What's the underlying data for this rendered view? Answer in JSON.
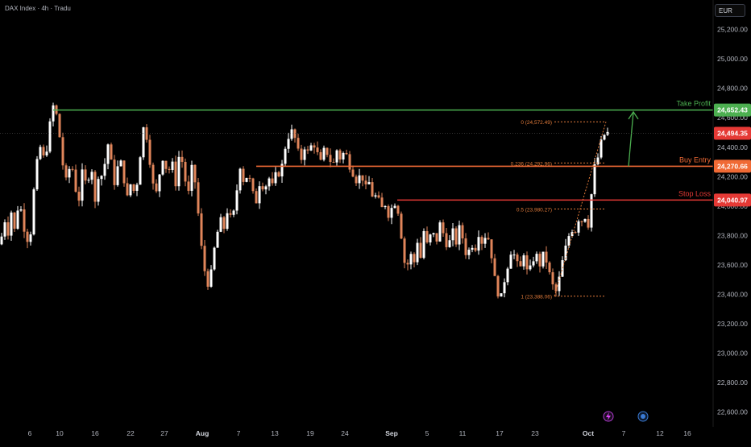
{
  "header": {
    "title": "DAX Index · 4h · Tradu",
    "currency": "EUR"
  },
  "icons": {
    "bolt": "lightning-bolt-icon",
    "calendar": "economic-event-icon"
  },
  "colors": {
    "background": "#000000",
    "candle_up": "#ffffff",
    "candle_down": "#e0855a",
    "take_profit": "#4caf50",
    "buy_entry": "#f06a35",
    "stop_loss": "#e53935",
    "fib": "#e07a3a",
    "axis_text": "#b2b5be"
  },
  "chart_data": {
    "type": "candlestick",
    "instrument": "DAX Index",
    "timeframe": "4h",
    "ylim": [
      22500,
      25400
    ],
    "y_ticks": [
      22600,
      22800,
      23000,
      23200,
      23400,
      23600,
      23800,
      24000,
      24200,
      24400,
      24600,
      24800,
      25000,
      25200
    ],
    "y_tick_labels": [
      "22,600.00",
      "22,800.00",
      "23,000.00",
      "23,200.00",
      "23,400.00",
      "23,600.00",
      "23,800.00",
      "24,000.00",
      "24,200.00",
      "24,400.00",
      "24,600.00",
      "24,800.00",
      "25,000.00",
      "25,200.00"
    ],
    "x_tick_labels": [
      "6",
      "10",
      "16",
      "22",
      "27",
      "Aug",
      "7",
      "13",
      "19",
      "24",
      "Sep",
      "5",
      "11",
      "17",
      "23",
      "Oct",
      "7",
      "12",
      "16"
    ],
    "close_path": [
      [
        0,
        23740
      ],
      [
        6,
        23900
      ],
      [
        9,
        23780
      ],
      [
        14,
        23960
      ],
      [
        18,
        23840
      ],
      [
        24,
        24050
      ],
      [
        28,
        23900
      ],
      [
        33,
        23760
      ],
      [
        38,
        23820
      ],
      [
        44,
        24250
      ],
      [
        50,
        24400
      ],
      [
        56,
        24300
      ],
      [
        62,
        24560
      ],
      [
        66,
        24680
      ],
      [
        70,
        24620
      ],
      [
        74,
        24470
      ],
      [
        78,
        24280
      ],
      [
        83,
        24150
      ],
      [
        88,
        24320
      ],
      [
        92,
        24180
      ],
      [
        97,
        24000
      ],
      [
        102,
        24230
      ],
      [
        108,
        24130
      ],
      [
        113,
        24300
      ],
      [
        118,
        24020
      ],
      [
        123,
        24250
      ],
      [
        128,
        24180
      ],
      [
        133,
        24450
      ],
      [
        138,
        24300
      ],
      [
        143,
        24120
      ],
      [
        148,
        24360
      ],
      [
        153,
        24200
      ],
      [
        158,
        24060
      ],
      [
        163,
        24170
      ],
      [
        168,
        24060
      ],
      [
        173,
        24300
      ],
      [
        178,
        24530
      ],
      [
        183,
        24450
      ],
      [
        188,
        24200
      ],
      [
        193,
        24060
      ],
      [
        198,
        24220
      ],
      [
        203,
        24350
      ],
      [
        208,
        24200
      ],
      [
        213,
        24320
      ],
      [
        218,
        24150
      ],
      [
        223,
        24380
      ],
      [
        228,
        24250
      ],
      [
        233,
        24050
      ],
      [
        238,
        24260
      ],
      [
        243,
        24140
      ],
      [
        248,
        23820
      ],
      [
        252,
        23620
      ],
      [
        256,
        23500
      ],
      [
        260,
        23440
      ],
      [
        264,
        23660
      ],
      [
        268,
        23760
      ],
      [
        273,
        23920
      ],
      [
        278,
        23850
      ],
      [
        283,
        23990
      ],
      [
        288,
        23880
      ],
      [
        293,
        24070
      ],
      [
        298,
        24270
      ],
      [
        303,
        24150
      ],
      [
        308,
        24230
      ],
      [
        313,
        24100
      ],
      [
        318,
        24030
      ],
      [
        323,
        24180
      ],
      [
        328,
        24100
      ],
      [
        333,
        24200
      ],
      [
        338,
        24140
      ],
      [
        343,
        24230
      ],
      [
        348,
        24210
      ],
      [
        353,
        24380
      ],
      [
        358,
        24470
      ],
      [
        363,
        24520
      ],
      [
        368,
        24420
      ],
      [
        373,
        24300
      ],
      [
        378,
        24400
      ],
      [
        383,
        24360
      ],
      [
        388,
        24440
      ],
      [
        393,
        24370
      ],
      [
        398,
        24300
      ],
      [
        403,
        24400
      ],
      [
        408,
        24330
      ],
      [
        413,
        24270
      ],
      [
        418,
        24380
      ],
      [
        423,
        24310
      ],
      [
        428,
        24390
      ],
      [
        433,
        24280
      ],
      [
        438,
        24220
      ],
      [
        443,
        24160
      ],
      [
        448,
        24230
      ],
      [
        453,
        24120
      ],
      [
        458,
        24160
      ],
      [
        463,
        24050
      ],
      [
        468,
        24080
      ],
      [
        473,
        23980
      ],
      [
        478,
        24010
      ],
      [
        483,
        23920
      ],
      [
        488,
        24030
      ],
      [
        493,
        24000
      ],
      [
        497,
        23850
      ],
      [
        501,
        23630
      ],
      [
        505,
        23580
      ],
      [
        509,
        23680
      ],
      [
        514,
        23620
      ],
      [
        518,
        23760
      ],
      [
        522,
        23650
      ],
      [
        526,
        23830
      ],
      [
        531,
        23720
      ],
      [
        536,
        23850
      ],
      [
        541,
        23740
      ],
      [
        546,
        23880
      ],
      [
        551,
        23800
      ],
      [
        556,
        23700
      ],
      [
        561,
        23850
      ],
      [
        566,
        23750
      ],
      [
        571,
        23880
      ],
      [
        576,
        23720
      ],
      [
        580,
        23640
      ],
      [
        584,
        23760
      ],
      [
        589,
        23690
      ],
      [
        594,
        23810
      ],
      [
        599,
        23740
      ],
      [
        604,
        23830
      ],
      [
        609,
        23700
      ],
      [
        613,
        23540
      ],
      [
        617,
        23420
      ],
      [
        621,
        23360
      ],
      [
        625,
        23470
      ],
      [
        630,
        23590
      ],
      [
        635,
        23710
      ],
      [
        640,
        23640
      ],
      [
        645,
        23560
      ],
      [
        650,
        23680
      ],
      [
        655,
        23530
      ],
      [
        660,
        23610
      ],
      [
        665,
        23680
      ],
      [
        670,
        23600
      ],
      [
        675,
        23690
      ],
      [
        680,
        23580
      ],
      [
        685,
        23480
      ],
      [
        689,
        23400
      ],
      [
        693,
        23480
      ],
      [
        697,
        23600
      ],
      [
        701,
        23700
      ],
      [
        705,
        23780
      ],
      [
        709,
        23850
      ],
      [
        713,
        23800
      ],
      [
        717,
        23920
      ],
      [
        721,
        23880
      ],
      [
        725,
        23960
      ],
      [
        729,
        23820
      ],
      [
        733,
        24020
      ],
      [
        737,
        24260
      ],
      [
        741,
        24300
      ],
      [
        745,
        24420
      ],
      [
        749,
        24480
      ],
      [
        753,
        24500
      ],
      [
        756,
        24494
      ]
    ],
    "horizontal_levels": [
      {
        "name": "Take Profit",
        "value": 24652.43,
        "value_label": "24,652.43",
        "x_start": 66
      },
      {
        "name": "Buy Entry",
        "value": 24270.66,
        "value_label": "24,270.66",
        "x_start": 318
      },
      {
        "name": "Stop Loss",
        "value": 24040.97,
        "value_label": "24,040.97",
        "x_start": 493
      }
    ],
    "current_price": {
      "value": 24494.35,
      "value_label": "24,494.35"
    },
    "fibonacci": {
      "x_start": 688,
      "x_end": 752,
      "levels": [
        {
          "label": "0 (24,572.49)",
          "value": 24572.49
        },
        {
          "label": "0.236 (24,292.96)",
          "value": 24292.96
        },
        {
          "label": "0.5 (23,980.27)",
          "value": 23980.27
        },
        {
          "label": "1 (23,388.06)",
          "value": 23388.06
        }
      ]
    },
    "arrow": {
      "from": [
        780,
        24270.66
      ],
      "to": [
        786,
        24640
      ]
    }
  }
}
